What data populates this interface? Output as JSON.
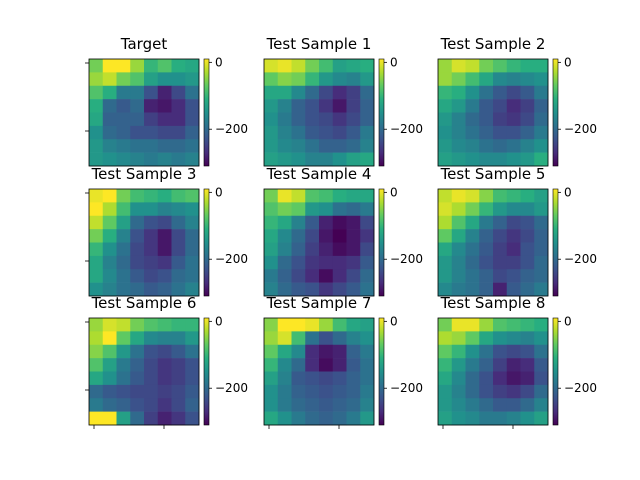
{
  "chart_data": {
    "type": "heatmap",
    "colormap": "viridis",
    "color_range": [
      -310,
      10
    ],
    "colorbar_ticks": [
      "0",
      "−200"
    ],
    "colorbar_tick_values": [
      0,
      -200
    ],
    "panels": [
      {
        "title": "Target",
        "z": [
          [
            -60,
            10,
            10,
            -40,
            -100,
            -80,
            -110,
            -120
          ],
          [
            -40,
            -20,
            -60,
            -80,
            -130,
            -150,
            -150,
            -140
          ],
          [
            -80,
            -110,
            -180,
            -180,
            -230,
            -280,
            -240,
            -190
          ],
          [
            -110,
            -200,
            -220,
            -200,
            -280,
            -290,
            -270,
            -230
          ],
          [
            -120,
            -210,
            -210,
            -210,
            -250,
            -270,
            -270,
            -230
          ],
          [
            -150,
            -200,
            -210,
            -230,
            -230,
            -240,
            -240,
            -210
          ],
          [
            -140,
            -170,
            -180,
            -190,
            -190,
            -200,
            -200,
            -190
          ],
          [
            -140,
            -150,
            -160,
            -170,
            -180,
            -170,
            -180,
            -170
          ]
        ]
      },
      {
        "title": "Test Sample 1",
        "z": [
          [
            -10,
            0,
            -20,
            -60,
            -90,
            -130,
            -120,
            -110
          ],
          [
            -70,
            -50,
            -60,
            -100,
            -140,
            -160,
            -170,
            -140
          ],
          [
            -120,
            -120,
            -160,
            -200,
            -240,
            -270,
            -250,
            -200
          ],
          [
            -140,
            -170,
            -210,
            -230,
            -260,
            -290,
            -250,
            -210
          ],
          [
            -150,
            -180,
            -210,
            -230,
            -240,
            -260,
            -240,
            -210
          ],
          [
            -140,
            -170,
            -190,
            -220,
            -230,
            -240,
            -220,
            -180
          ],
          [
            -140,
            -160,
            -170,
            -190,
            -210,
            -210,
            -200,
            -170
          ],
          [
            -130,
            -140,
            -150,
            -170,
            -170,
            -150,
            -130,
            -120
          ]
        ]
      },
      {
        "title": "Test Sample 2",
        "z": [
          [
            -40,
            -10,
            -20,
            -60,
            -80,
            -100,
            -110,
            -110
          ],
          [
            -40,
            -60,
            -90,
            -120,
            -160,
            -170,
            -160,
            -150
          ],
          [
            -100,
            -110,
            -150,
            -190,
            -220,
            -240,
            -220,
            -180
          ],
          [
            -120,
            -140,
            -180,
            -220,
            -240,
            -270,
            -250,
            -210
          ],
          [
            -140,
            -170,
            -200,
            -220,
            -250,
            -260,
            -240,
            -200
          ],
          [
            -150,
            -170,
            -190,
            -210,
            -230,
            -230,
            -210,
            -180
          ],
          [
            -140,
            -160,
            -170,
            -190,
            -200,
            -190,
            -170,
            -150
          ],
          [
            -130,
            -140,
            -150,
            -160,
            -160,
            -150,
            -140,
            -110
          ]
        ]
      },
      {
        "title": "Test Sample 3",
        "z": [
          [
            0,
            10,
            -60,
            -90,
            -100,
            -110,
            -90,
            -80
          ],
          [
            10,
            -30,
            -90,
            -150,
            -150,
            -170,
            -160,
            -150
          ],
          [
            -20,
            -70,
            -130,
            -200,
            -230,
            -240,
            -200,
            -170
          ],
          [
            -60,
            -110,
            -170,
            -230,
            -260,
            -290,
            -240,
            -200
          ],
          [
            -100,
            -150,
            -190,
            -240,
            -260,
            -290,
            -240,
            -200
          ],
          [
            -120,
            -170,
            -200,
            -240,
            -250,
            -260,
            -220,
            -190
          ],
          [
            -120,
            -160,
            -190,
            -220,
            -240,
            -230,
            -200,
            -190
          ],
          [
            -150,
            -170,
            -190,
            -200,
            -220,
            -210,
            -190,
            -170
          ]
        ]
      },
      {
        "title": "Test Sample 4",
        "z": [
          [
            -60,
            0,
            -20,
            -80,
            -90,
            -110,
            -120,
            -120
          ],
          [
            -80,
            -60,
            -70,
            -140,
            -150,
            -190,
            -200,
            -180
          ],
          [
            -100,
            -120,
            -170,
            -220,
            -280,
            -300,
            -290,
            -240
          ],
          [
            -120,
            -160,
            -200,
            -240,
            -290,
            -310,
            -290,
            -260
          ],
          [
            -130,
            -170,
            -210,
            -250,
            -280,
            -300,
            -290,
            -240
          ],
          [
            -150,
            -200,
            -230,
            -260,
            -270,
            -270,
            -260,
            -220
          ],
          [
            -180,
            -210,
            -240,
            -270,
            -300,
            -270,
            -240,
            -200
          ],
          [
            -170,
            -200,
            -220,
            -230,
            -260,
            -240,
            -220,
            -190
          ]
        ]
      },
      {
        "title": "Test Sample 5",
        "z": [
          [
            -20,
            0,
            -10,
            -50,
            -90,
            -100,
            -110,
            -130
          ],
          [
            -10,
            -30,
            -60,
            -100,
            -140,
            -160,
            -160,
            -140
          ],
          [
            -30,
            -80,
            -120,
            -180,
            -210,
            -240,
            -230,
            -200
          ],
          [
            -70,
            -120,
            -170,
            -210,
            -240,
            -260,
            -240,
            -210
          ],
          [
            -120,
            -160,
            -190,
            -220,
            -250,
            -270,
            -230,
            -210
          ],
          [
            -140,
            -170,
            -200,
            -230,
            -250,
            -250,
            -230,
            -200
          ],
          [
            -140,
            -170,
            -190,
            -210,
            -240,
            -230,
            -210,
            -200
          ],
          [
            -160,
            -180,
            -190,
            -210,
            -280,
            -220,
            -200,
            -180
          ]
        ]
      },
      {
        "title": "Test Sample 6",
        "z": [
          [
            -40,
            -10,
            -20,
            -60,
            -80,
            -90,
            -100,
            -100
          ],
          [
            -30,
            10,
            -70,
            -120,
            -160,
            -170,
            -170,
            -140
          ],
          [
            -50,
            -80,
            -140,
            -190,
            -230,
            -240,
            -220,
            -190
          ],
          [
            -80,
            -130,
            -180,
            -210,
            -240,
            -260,
            -250,
            -230
          ],
          [
            -120,
            -150,
            -190,
            -220,
            -240,
            -260,
            -250,
            -230
          ],
          [
            -200,
            -220,
            -230,
            -240,
            -240,
            -250,
            -240,
            -220
          ],
          [
            -180,
            -200,
            -210,
            -230,
            -240,
            -260,
            -240,
            -210
          ],
          [
            20,
            20,
            -130,
            -200,
            -250,
            -280,
            -260,
            -230
          ]
        ]
      },
      {
        "title": "Test Sample 7",
        "z": [
          [
            -50,
            10,
            10,
            0,
            -40,
            -90,
            -120,
            -130
          ],
          [
            -40,
            -10,
            -90,
            -190,
            -230,
            -200,
            -170,
            -150
          ],
          [
            -70,
            -120,
            -160,
            -270,
            -290,
            -280,
            -210,
            -180
          ],
          [
            -100,
            -160,
            -200,
            -270,
            -300,
            -280,
            -220,
            -190
          ],
          [
            -130,
            -170,
            -220,
            -230,
            -240,
            -230,
            -210,
            -190
          ],
          [
            -150,
            -180,
            -210,
            -220,
            -230,
            -220,
            -210,
            -180
          ],
          [
            -150,
            -180,
            -200,
            -210,
            -220,
            -210,
            -200,
            -170
          ],
          [
            -120,
            -150,
            -180,
            -200,
            -210,
            -200,
            -180,
            -140
          ]
        ]
      },
      {
        "title": "Test Sample 8",
        "z": [
          [
            -60,
            0,
            0,
            -40,
            -80,
            -90,
            -100,
            -110
          ],
          [
            -30,
            -40,
            -70,
            -120,
            -150,
            -160,
            -170,
            -150
          ],
          [
            -70,
            -100,
            -150,
            -190,
            -230,
            -240,
            -230,
            -190
          ],
          [
            -100,
            -140,
            -180,
            -210,
            -250,
            -280,
            -270,
            -220
          ],
          [
            -120,
            -160,
            -200,
            -230,
            -270,
            -290,
            -280,
            -230
          ],
          [
            -140,
            -170,
            -200,
            -230,
            -250,
            -260,
            -240,
            -200
          ],
          [
            -140,
            -160,
            -180,
            -200,
            -220,
            -220,
            -200,
            -170
          ],
          [
            -130,
            -150,
            -160,
            -180,
            -180,
            -170,
            -150,
            -130
          ]
        ]
      }
    ]
  }
}
